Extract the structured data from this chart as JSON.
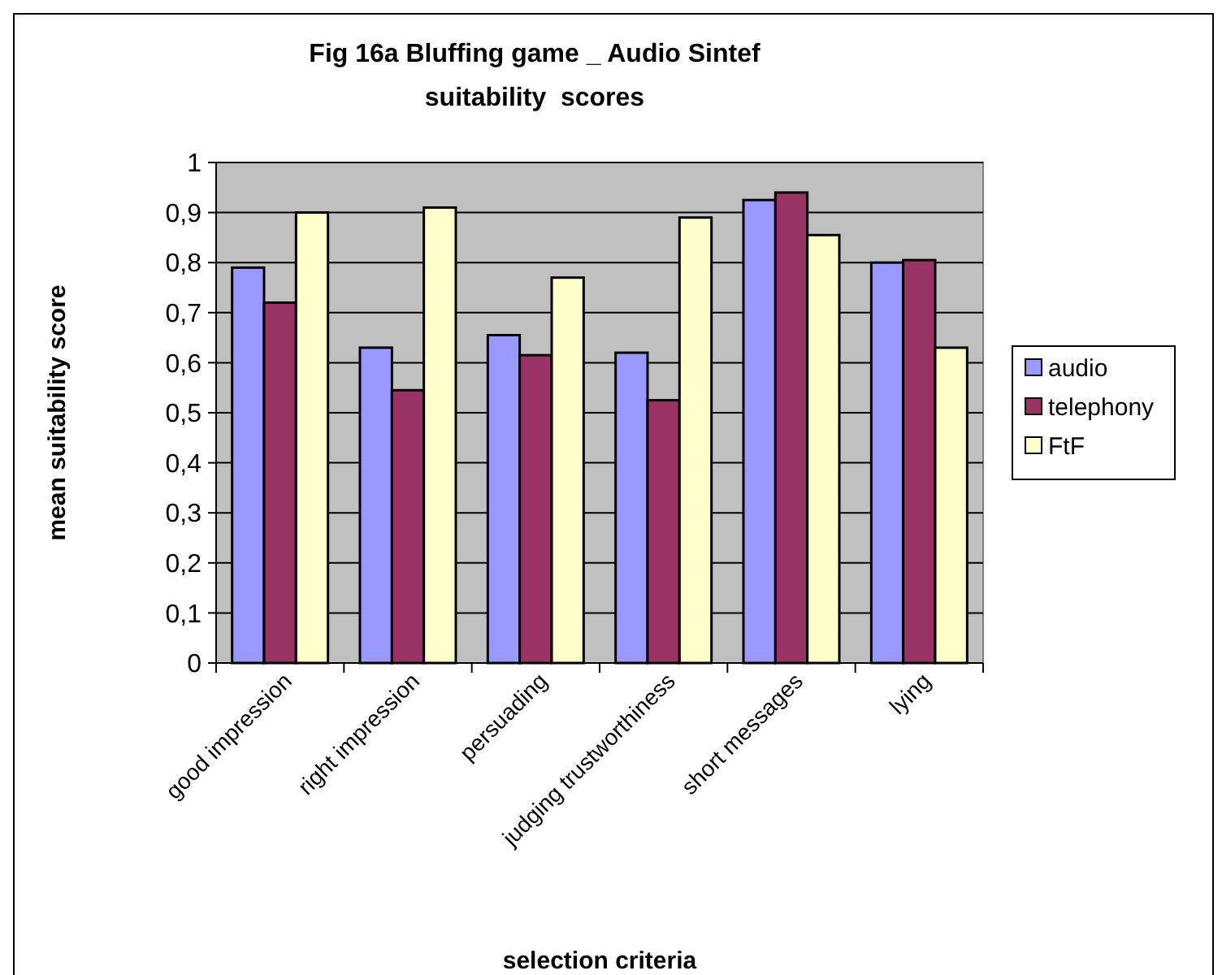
{
  "chart_data": {
    "type": "bar",
    "title": "Fig 16a Bluffing game _ Audio Sintef\nsuitability  scores",
    "xlabel": "selection criteria",
    "ylabel": "mean suitability score",
    "categories": [
      "good impression",
      "right impression",
      "persuading",
      "judging trustworthiness",
      "short messages",
      "lying"
    ],
    "series": [
      {
        "name": "audio",
        "color": "#9999ff",
        "values": [
          0.79,
          0.63,
          0.655,
          0.62,
          0.925,
          0.8
        ]
      },
      {
        "name": "telephony",
        "color": "#993366",
        "values": [
          0.72,
          0.545,
          0.615,
          0.525,
          0.94,
          0.805
        ]
      },
      {
        "name": "FtF",
        "color": "#ffffcc",
        "values": [
          0.9,
          0.91,
          0.77,
          0.89,
          0.855,
          0.63
        ]
      }
    ],
    "ylim": [
      0,
      1
    ],
    "yticks": [
      0,
      {
        "value": 0.1,
        "label": "0,1"
      },
      {
        "value": 0.2,
        "label": "0,2"
      },
      {
        "value": 0.3,
        "label": "0,3"
      },
      {
        "value": 0.4,
        "label": "0,4"
      },
      {
        "value": 0.5,
        "label": "0,5"
      },
      {
        "value": 0.6,
        "label": "0,6"
      },
      {
        "value": 0.7,
        "label": "0,7"
      },
      {
        "value": 0.8,
        "label": "0,8"
      },
      {
        "value": 0.9,
        "label": "0,9"
      },
      1
    ],
    "grid": "y",
    "legend": "right"
  }
}
